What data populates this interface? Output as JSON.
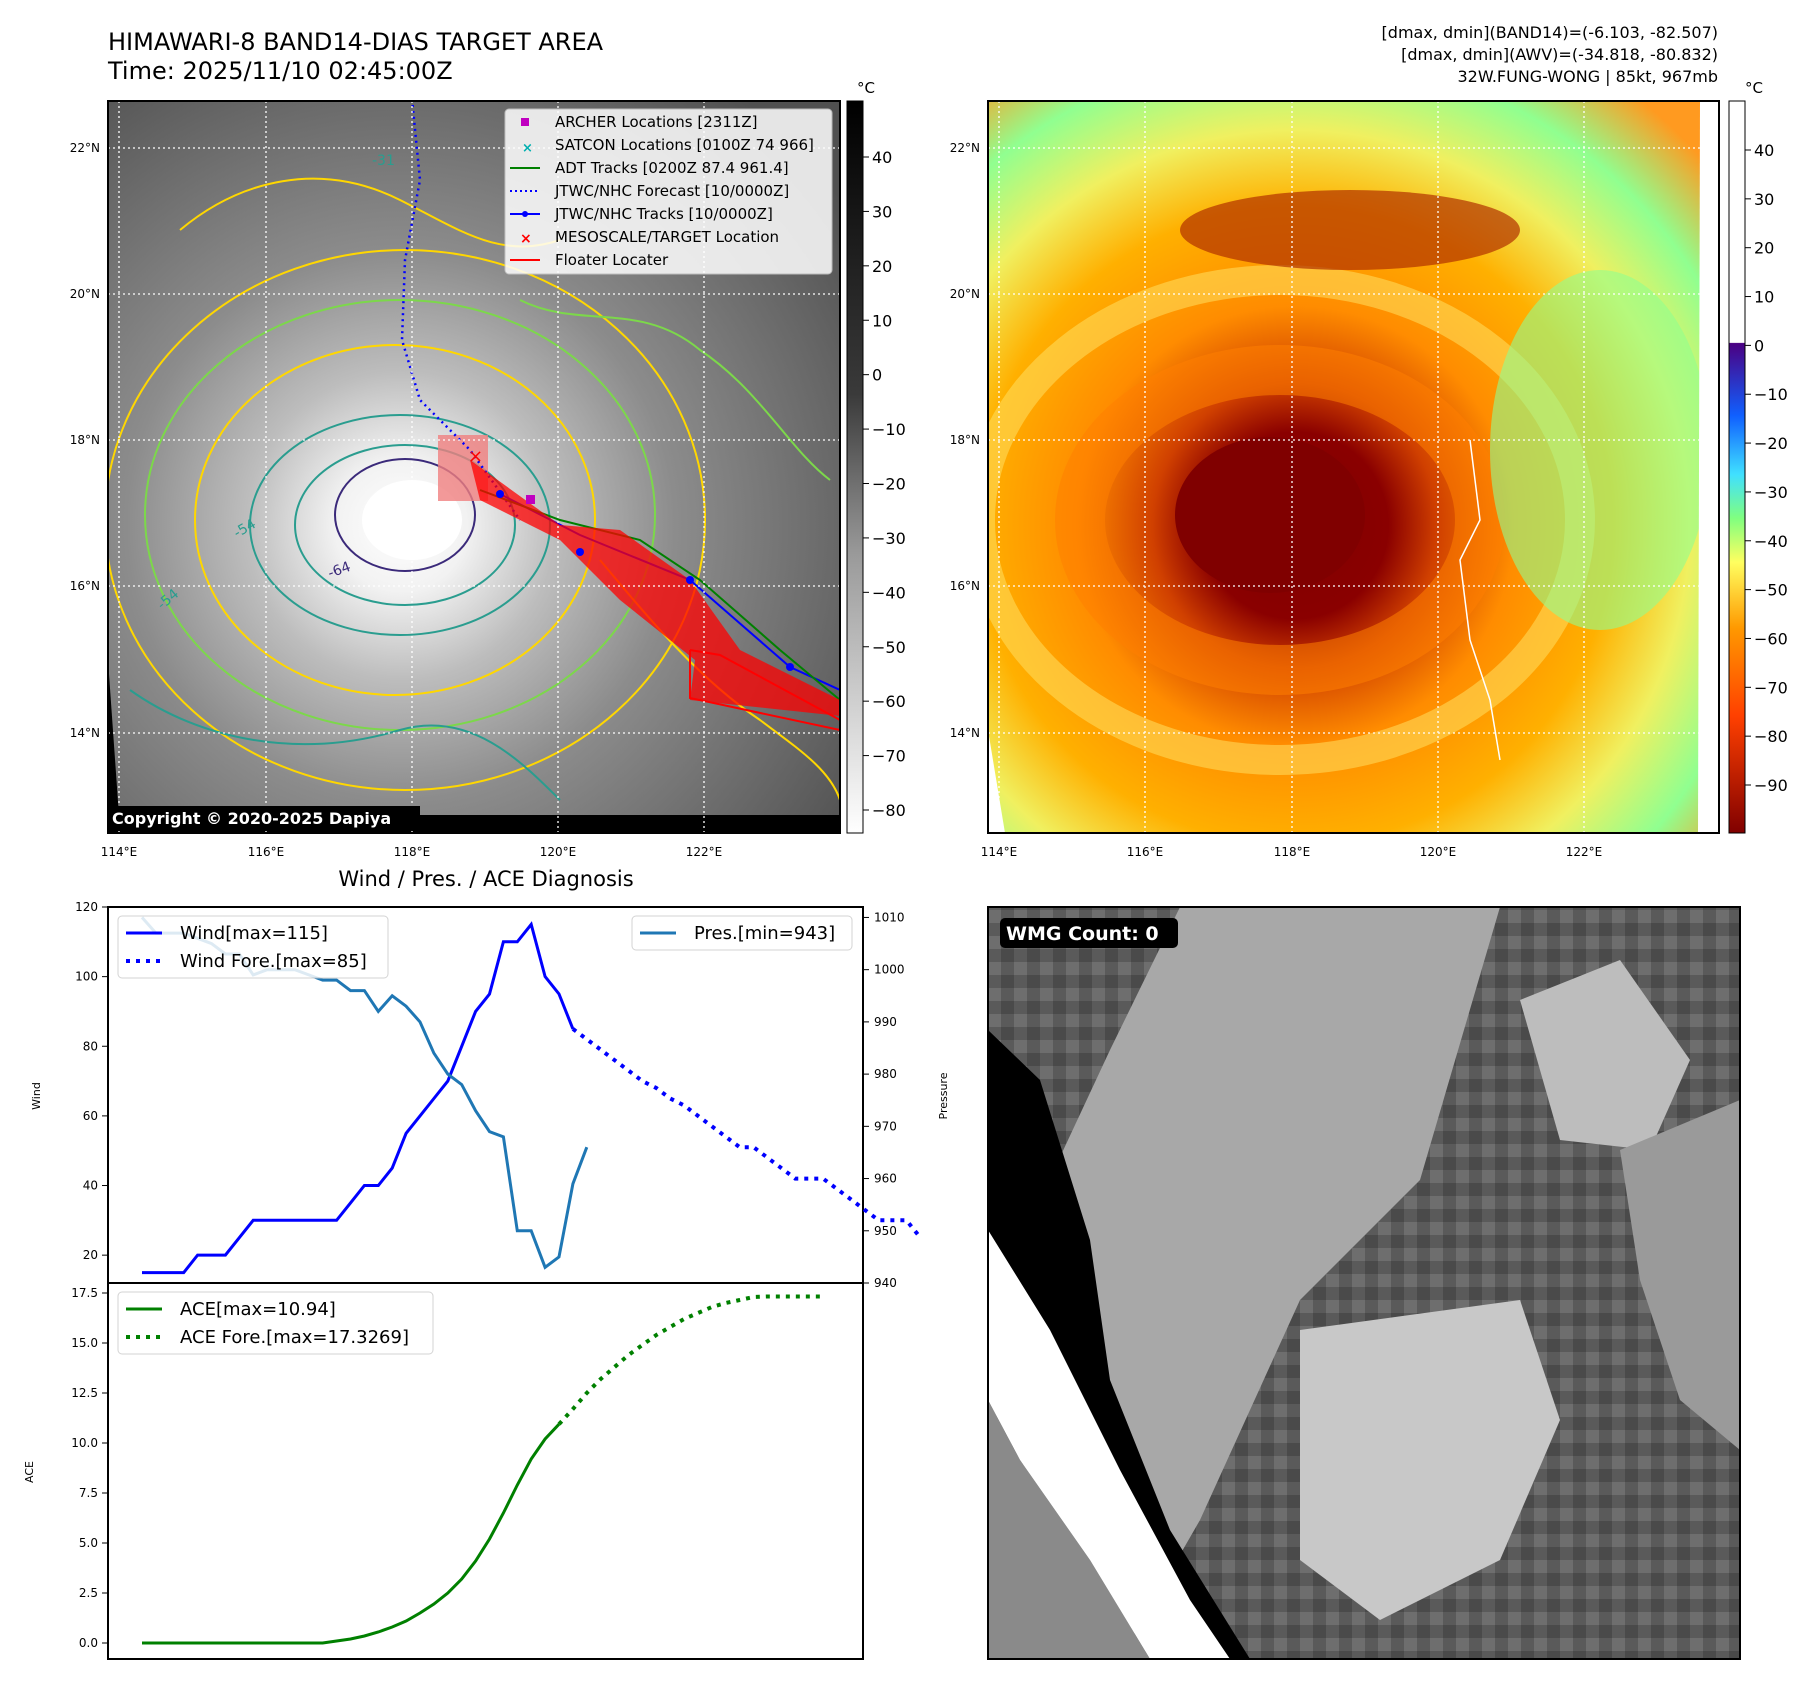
{
  "header": {
    "title_line1": "HIMAWARI-8 BAND14-DIAS TARGET AREA",
    "title_line2": "Time: 2025/11/10 02:45:00Z",
    "stats_line1": "[dmax, dmin](BAND14)=(-6.103, -82.507)",
    "stats_line2": "[dmax, dmin](AWV)=(-34.818, -80.832)",
    "stats_line3": "32W.FUNG-WONG | 85kt, 967mb"
  },
  "map_axes": {
    "lat_labels": [
      "22°N",
      "20°N",
      "18°N",
      "16°N",
      "14°N"
    ],
    "lon_labels": [
      "114°E",
      "116°E",
      "118°E",
      "120°E",
      "122°E"
    ]
  },
  "colorbar_left": {
    "unit": "°C",
    "ticks": [
      "40",
      "30",
      "20",
      "10",
      "0",
      "−10",
      "−20",
      "−30",
      "−40",
      "−50",
      "−60",
      "−70",
      "−80"
    ]
  },
  "colorbar_right": {
    "unit": "°C",
    "ticks": [
      "40",
      "30",
      "20",
      "10",
      "0",
      "−10",
      "−20",
      "−30",
      "−40",
      "−50",
      "−60",
      "−70",
      "−80",
      "−90"
    ]
  },
  "contour_labels": [
    "-31",
    "-54",
    "-64",
    "-54"
  ],
  "legend_map": [
    {
      "label": "ARCHER Locations [2311Z]",
      "color": "#c000c0",
      "marker": "square"
    },
    {
      "label": "SATCON Locations [0100Z 74 966]",
      "color": "#00b0b0",
      "marker": "x"
    },
    {
      "label": "ADT Tracks [0200Z 87.4 961.4]",
      "color": "#008000",
      "marker": "line"
    },
    {
      "label": "JTWC/NHC Forecast [10/0000Z]",
      "color": "#0000ff",
      "marker": "dotted"
    },
    {
      "label": "JTWC/NHC Tracks [10/0000Z]",
      "color": "#0000ff",
      "marker": "line-dot"
    },
    {
      "label": "MESOSCALE/TARGET Location",
      "color": "#ff0000",
      "marker": "x"
    },
    {
      "label": "Floater Locater",
      "color": "#ff0000",
      "marker": "line"
    }
  ],
  "copyright": "Copyright © 2020-2025 Dapiya",
  "wmg_label": "WMG Count: 0",
  "chart_data": [
    {
      "type": "line",
      "title": "Wind / Pres. / ACE Diagnosis",
      "xlabel": "",
      "ylabel": "Wind",
      "y2label": "Pressure",
      "ylim": [
        12,
        120
      ],
      "y2lim": [
        940,
        1012
      ],
      "yticks": [
        "120",
        "100",
        "80",
        "60",
        "40",
        "20"
      ],
      "y2ticks": [
        "1010",
        "1000",
        "990",
        "980",
        "970",
        "960",
        "950",
        "940"
      ],
      "legend_left": [
        "Wind[max=115]",
        "Wind Fore.[max=85]"
      ],
      "legend_right": [
        "Pres.[min=943]"
      ],
      "series": [
        {
          "name": "Wind[max=115]",
          "color": "#0000ff",
          "style": "solid",
          "values": [
            15,
            15,
            15,
            15,
            20,
            20,
            20,
            25,
            30,
            30,
            30,
            30,
            30,
            30,
            30,
            35,
            40,
            40,
            45,
            55,
            60,
            65,
            70,
            80,
            90,
            95,
            110,
            110,
            115,
            100,
            95,
            85
          ]
        },
        {
          "name": "Wind Fore.[max=85]",
          "color": "#0000ff",
          "style": "dotted",
          "x_offset": 31,
          "values": [
            85,
            82,
            79,
            76,
            73,
            70,
            68,
            65,
            63,
            60,
            57,
            54,
            51,
            51,
            48,
            45,
            42,
            42,
            42,
            39,
            36,
            33,
            30,
            30,
            30,
            25
          ]
        },
        {
          "name": "Pres.[min=943]",
          "color": "#1f77b4",
          "style": "solid",
          "axis": "y2",
          "values": [
            1010,
            1007,
            1007,
            1007,
            1006,
            1005,
            1003,
            1003,
            999,
            1000,
            1000,
            1000,
            999,
            998,
            998,
            996,
            996,
            992,
            995,
            993,
            990,
            984,
            980,
            978,
            973,
            969,
            968,
            950,
            950,
            943,
            945,
            959,
            966
          ]
        }
      ]
    },
    {
      "type": "line",
      "title": "",
      "xlabel": "",
      "ylabel": "ACE",
      "ylim": [
        -0.8,
        18
      ],
      "yticks": [
        "17.5",
        "15.0",
        "12.5",
        "10.0",
        "7.5",
        "5.0",
        "2.5",
        "0.0"
      ],
      "legend": [
        "ACE[max=10.94]",
        "ACE Fore.[max=17.3269]"
      ],
      "series": [
        {
          "name": "ACE[max=10.94]",
          "color": "#008000",
          "style": "solid",
          "values": [
            0,
            0,
            0,
            0,
            0,
            0,
            0,
            0,
            0,
            0,
            0,
            0,
            0,
            0,
            0.1,
            0.2,
            0.35,
            0.55,
            0.8,
            1.1,
            1.5,
            1.95,
            2.5,
            3.2,
            4.1,
            5.2,
            6.5,
            7.9,
            9.2,
            10.2,
            10.94
          ]
        },
        {
          "name": "ACE Fore.[max=17.3269]",
          "color": "#008000",
          "style": "dotted",
          "x_offset": 30,
          "values": [
            10.94,
            11.7,
            12.5,
            13.2,
            13.8,
            14.4,
            14.9,
            15.4,
            15.8,
            16.2,
            16.5,
            16.8,
            17.0,
            17.15,
            17.3,
            17.3269,
            17.3269,
            17.3269,
            17.3269,
            17.3269
          ]
        }
      ]
    }
  ]
}
